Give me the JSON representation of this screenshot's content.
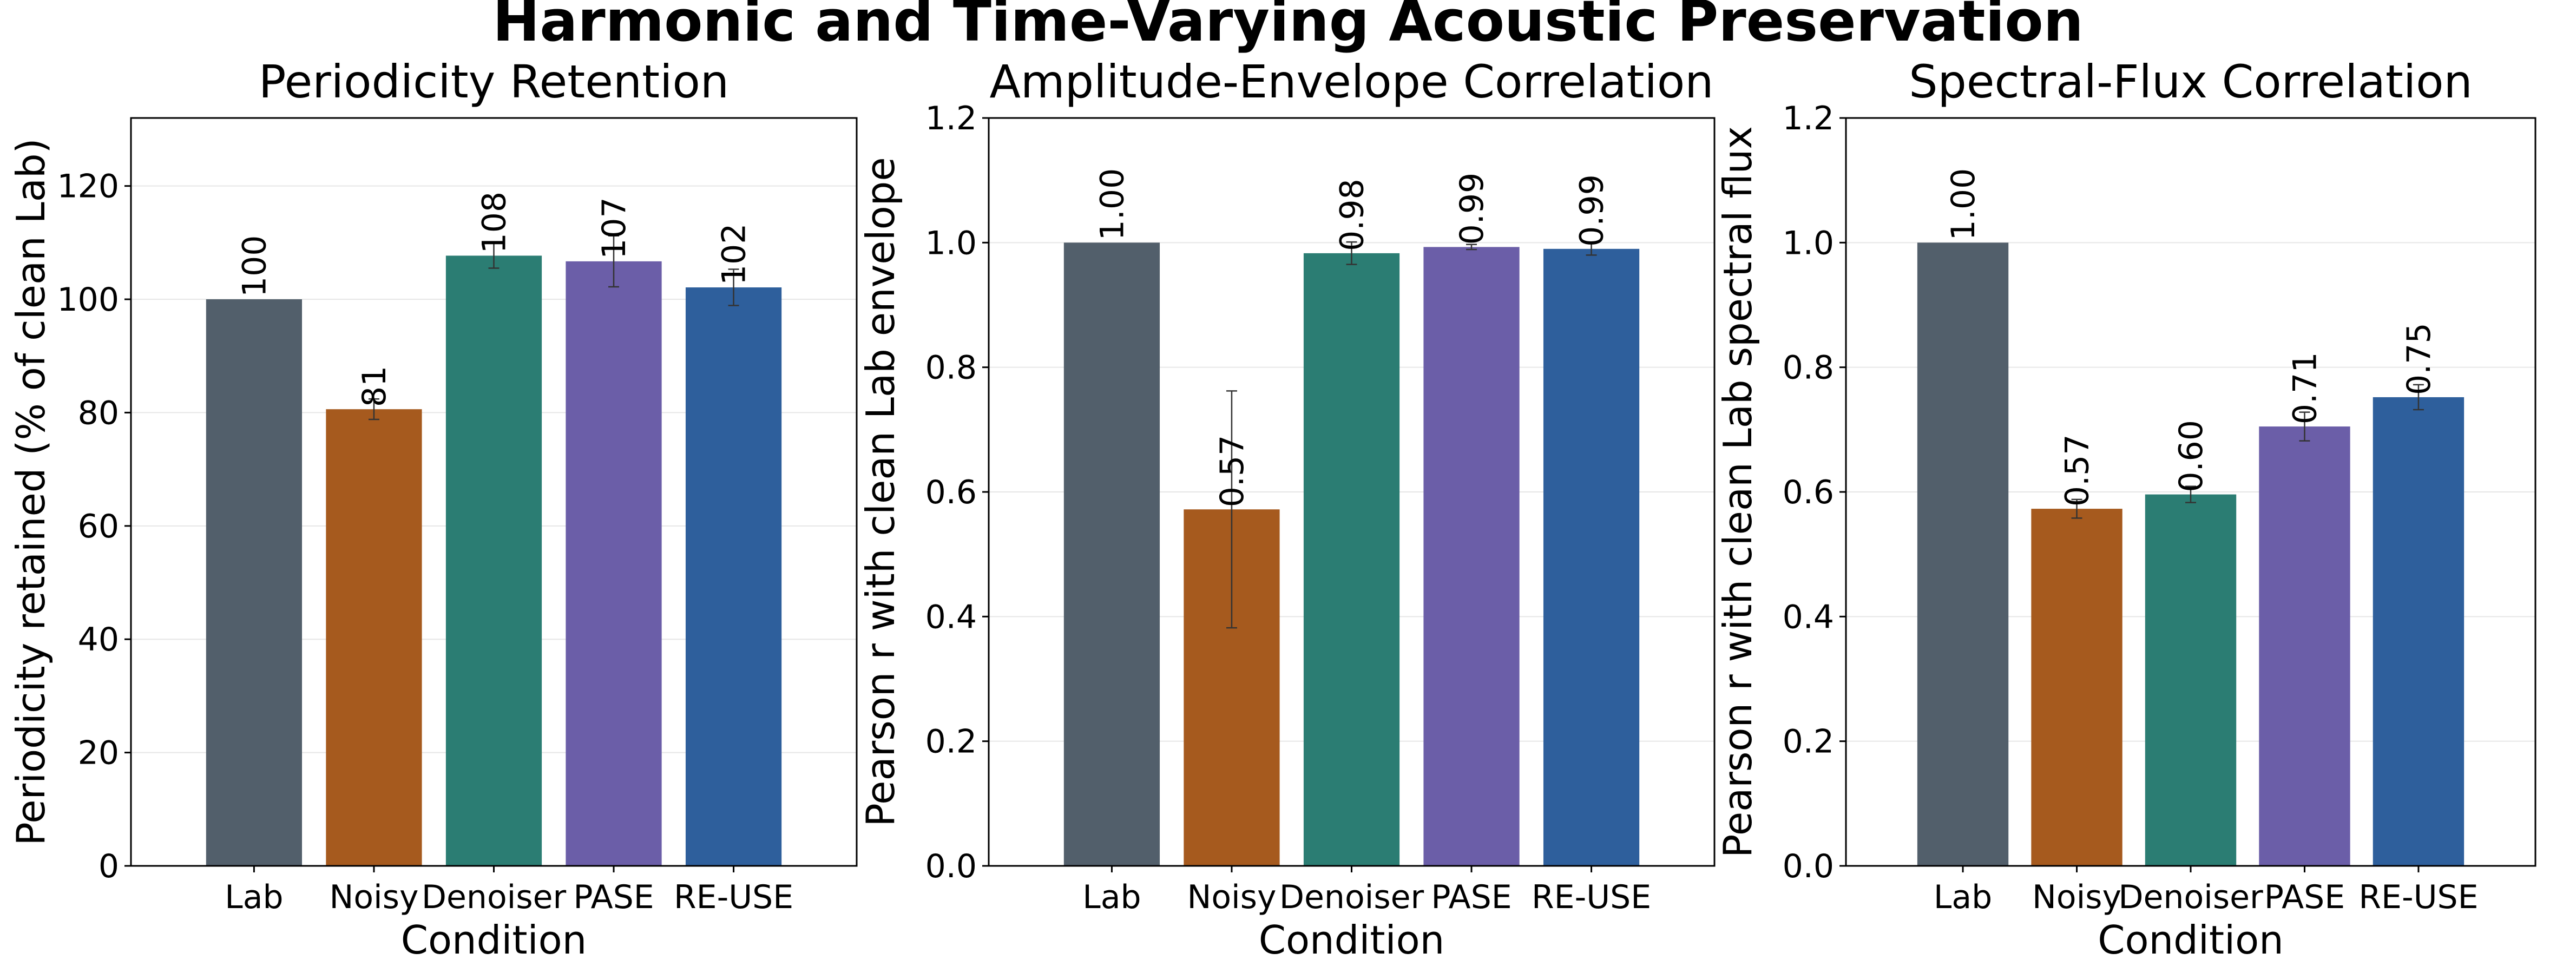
{
  "figure": {
    "suptitle": "Harmonic and Time-Varying Acoustic Preservation"
  },
  "colors": {
    "Lab": "#525f6b",
    "Noisy": "#a65a1e",
    "Denoiser": "#2b7d73",
    "PASE": "#6b5ea8",
    "RE-USE": "#2e5f9c"
  },
  "chart_data": [
    {
      "type": "bar",
      "title": "Periodicity Retention",
      "xlabel": "Condition",
      "ylabel": "Periodicity retained (% of clean Lab)",
      "categories": [
        "Lab",
        "Noisy",
        "Denoiser",
        "PASE",
        "RE-USE"
      ],
      "values": [
        100,
        80.6,
        107.7,
        106.7,
        102.1
      ],
      "errors": [
        0,
        1.8,
        2.2,
        4.5,
        3.2
      ],
      "value_labels": [
        "100",
        "81",
        "108",
        "107",
        "102"
      ],
      "ylim": [
        0,
        132
      ],
      "yticks": [
        0,
        20,
        40,
        60,
        80,
        100,
        120
      ],
      "ytick_labels": [
        "0",
        "20",
        "40",
        "60",
        "80",
        "100",
        "120"
      ],
      "grid": true
    },
    {
      "type": "bar",
      "title": "Amplitude-Envelope Correlation",
      "xlabel": "Condition",
      "ylabel": "Pearson r with clean Lab envelope",
      "categories": [
        "Lab",
        "Noisy",
        "Denoiser",
        "PASE",
        "RE-USE"
      ],
      "values": [
        1.0,
        0.572,
        0.983,
        0.993,
        0.99
      ],
      "errors": [
        0,
        0.19,
        0.018,
        0.004,
        0.01
      ],
      "value_labels": [
        "1.00",
        "0.57",
        "0.98",
        "0.99",
        "0.99"
      ],
      "ylim": [
        0,
        1.2
      ],
      "yticks": [
        0,
        0.2,
        0.4,
        0.6,
        0.8,
        1.0,
        1.2
      ],
      "ytick_labels": [
        "0.0",
        "0.2",
        "0.4",
        "0.6",
        "0.8",
        "1.0",
        "1.2"
      ],
      "grid": true
    },
    {
      "type": "bar",
      "title": "Spectral-Flux Correlation",
      "xlabel": "Condition",
      "ylabel": "Pearson r with clean Lab spectral flux",
      "categories": [
        "Lab",
        "Noisy",
        "Denoiser",
        "PASE",
        "RE-USE"
      ],
      "values": [
        1.0,
        0.573,
        0.596,
        0.705,
        0.752
      ],
      "errors": [
        0,
        0.015,
        0.013,
        0.023,
        0.02
      ],
      "value_labels": [
        "1.00",
        "0.57",
        "0.60",
        "0.71",
        "0.75"
      ],
      "ylim": [
        0,
        1.2
      ],
      "yticks": [
        0,
        0.2,
        0.4,
        0.6,
        0.8,
        1.0,
        1.2
      ],
      "ytick_labels": [
        "0.0",
        "0.2",
        "0.4",
        "0.6",
        "0.8",
        "1.0",
        "1.2"
      ],
      "grid": true
    }
  ]
}
